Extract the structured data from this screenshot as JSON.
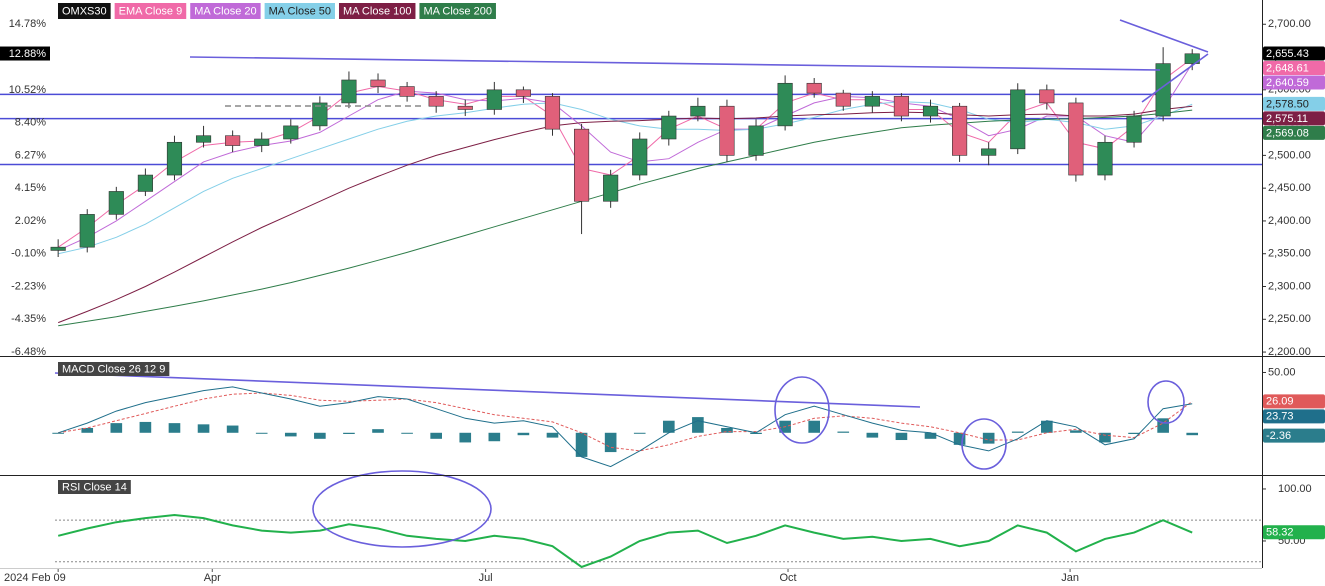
{
  "chart_data": [
    {
      "type": "candlestick",
      "name": "OMXS30",
      "open": [
        2355,
        2360,
        2410,
        2445,
        2470,
        2520,
        2530,
        2515,
        2525,
        2545,
        2580,
        2615,
        2605,
        2590,
        2575,
        2570,
        2600,
        2590,
        2540,
        2430,
        2470,
        2525,
        2560,
        2575,
        2500,
        2545,
        2610,
        2595,
        2575,
        2590,
        2560,
        2575,
        2500,
        2510,
        2600,
        2580,
        2470,
        2520,
        2560,
        2640
      ],
      "high": [
        2372,
        2418,
        2452,
        2480,
        2530,
        2545,
        2538,
        2535,
        2555,
        2590,
        2628,
        2625,
        2612,
        2598,
        2585,
        2612,
        2605,
        2595,
        2548,
        2478,
        2535,
        2568,
        2588,
        2585,
        2555,
        2622,
        2618,
        2600,
        2598,
        2595,
        2585,
        2580,
        2520,
        2610,
        2608,
        2588,
        2530,
        2568,
        2665,
        2662
      ],
      "low": [
        2345,
        2352,
        2402,
        2438,
        2462,
        2512,
        2505,
        2505,
        2518,
        2538,
        2572,
        2595,
        2582,
        2565,
        2560,
        2562,
        2580,
        2530,
        2380,
        2420,
        2462,
        2515,
        2552,
        2490,
        2492,
        2538,
        2588,
        2568,
        2565,
        2552,
        2550,
        2490,
        2485,
        2502,
        2570,
        2460,
        2462,
        2512,
        2552,
        2630
      ],
      "close": [
        2360,
        2410,
        2445,
        2470,
        2520,
        2530,
        2515,
        2525,
        2545,
        2580,
        2615,
        2605,
        2590,
        2575,
        2570,
        2600,
        2590,
        2540,
        2430,
        2470,
        2525,
        2560,
        2575,
        2500,
        2545,
        2610,
        2595,
        2575,
        2590,
        2560,
        2575,
        2500,
        2510,
        2600,
        2580,
        2470,
        2520,
        2560,
        2640,
        2655
      ],
      "up_color": "#2e8b57",
      "down_color": "#e0607a",
      "last": {
        "value": 2655.43,
        "label": "2,655.43",
        "color": "#000000"
      },
      "pct_last": {
        "value": 12.88,
        "label": "12.88%"
      },
      "series": [
        {
          "name": "EMA Close 9",
          "color": "#f06aa8",
          "values": [
            2360,
            2390,
            2425,
            2455,
            2490,
            2515,
            2520,
            2522,
            2535,
            2560,
            2595,
            2605,
            2598,
            2585,
            2578,
            2590,
            2590,
            2560,
            2480,
            2470,
            2500,
            2540,
            2560,
            2540,
            2540,
            2580,
            2595,
            2585,
            2585,
            2570,
            2570,
            2535,
            2520,
            2565,
            2580,
            2520,
            2510,
            2545,
            2615,
            2648
          ],
          "last": {
            "value": 2648.61,
            "label": "2,648.61"
          }
        },
        {
          "name": "MA Close 20",
          "color": "#c06ad8",
          "values": [
            2355,
            2375,
            2400,
            2430,
            2460,
            2490,
            2505,
            2515,
            2522,
            2535,
            2560,
            2585,
            2598,
            2595,
            2585,
            2583,
            2587,
            2580,
            2545,
            2505,
            2490,
            2495,
            2520,
            2540,
            2540,
            2560,
            2580,
            2590,
            2588,
            2580,
            2575,
            2555,
            2530,
            2540,
            2560,
            2560,
            2530,
            2520,
            2570,
            2640
          ],
          "last": {
            "value": 2640.59,
            "label": "2,640.59"
          }
        },
        {
          "name": "MA Close 50",
          "color": "#84cfe8",
          "values": [
            2350,
            2360,
            2375,
            2395,
            2420,
            2445,
            2465,
            2480,
            2495,
            2510,
            2525,
            2540,
            2552,
            2560,
            2565,
            2572,
            2578,
            2580,
            2570,
            2555,
            2545,
            2540,
            2540,
            2538,
            2540,
            2548,
            2558,
            2570,
            2578,
            2582,
            2580,
            2570,
            2555,
            2550,
            2555,
            2550,
            2540,
            2545,
            2560,
            2578
          ],
          "last": {
            "value": 2578.5,
            "label": "2,578.50"
          }
        },
        {
          "name": "MA Close 100",
          "color": "#7d1f45",
          "values": [
            2245,
            2262,
            2280,
            2300,
            2322,
            2345,
            2368,
            2390,
            2410,
            2430,
            2450,
            2468,
            2485,
            2500,
            2512,
            2524,
            2535,
            2545,
            2550,
            2552,
            2553,
            2555,
            2557,
            2556,
            2557,
            2560,
            2562,
            2563,
            2565,
            2566,
            2565,
            2562,
            2560,
            2562,
            2563,
            2560,
            2560,
            2563,
            2570,
            2575
          ],
          "last": {
            "value": 2575.11,
            "label": "2,575.11"
          }
        },
        {
          "name": "MA Close 200",
          "color": "#2f7d4a",
          "values": [
            2240,
            2247,
            2254,
            2262,
            2270,
            2278,
            2287,
            2296,
            2306,
            2317,
            2328,
            2340,
            2352,
            2365,
            2378,
            2391,
            2404,
            2417,
            2430,
            2443,
            2456,
            2468,
            2480,
            2490,
            2500,
            2510,
            2520,
            2528,
            2535,
            2542,
            2546,
            2549,
            2552,
            2554,
            2555,
            2556,
            2558,
            2560,
            2564,
            2569
          ],
          "last": {
            "value": 2569.08,
            "label": "2,569.08"
          }
        }
      ],
      "levels": [
        2593,
        2556,
        2486
      ],
      "level_color": "#4b4bd6",
      "xlim": [
        -2,
        41.4
      ],
      "xticks": [
        {
          "value": 0,
          "label": "2024 Feb 09"
        },
        {
          "value": 5.3,
          "label": "Apr"
        },
        {
          "value": 14.7,
          "label": "Jul"
        },
        {
          "value": 25.1,
          "label": "Oct"
        },
        {
          "value": 34.8,
          "label": "Jan"
        }
      ],
      "ylim": [
        2194,
        2737
      ],
      "yticks": [
        {
          "value": 2200,
          "label": "2,200.00"
        },
        {
          "value": 2250,
          "label": "2,250.00"
        },
        {
          "value": 2300,
          "label": "2,300.00"
        },
        {
          "value": 2350,
          "label": "2,350.00"
        },
        {
          "value": 2400,
          "label": "2,400.00"
        },
        {
          "value": 2450,
          "label": "2,450.00"
        },
        {
          "value": 2500,
          "label": "2,500.00"
        },
        {
          "value": 2550,
          "label": "2,550.00"
        },
        {
          "value": 2600,
          "label": "2,600.00"
        },
        {
          "value": 2650,
          "label": "2,650.00"
        },
        {
          "value": 2700,
          "label": "2,700.00"
        }
      ],
      "pct_lim": [
        -6.73,
        16.35
      ],
      "pct_ticks": [
        {
          "value": -6.48,
          "label": "-6.48%"
        },
        {
          "value": -4.35,
          "label": "-4.35%"
        },
        {
          "value": -2.23,
          "label": "-2.23%"
        },
        {
          "value": -0.1,
          "label": "-0.10%"
        },
        {
          "value": 2.02,
          "label": "2.02%"
        },
        {
          "value": 4.15,
          "label": "4.15%"
        },
        {
          "value": 6.27,
          "label": "6.27%"
        },
        {
          "value": 8.4,
          "label": "8.40%"
        },
        {
          "value": 10.52,
          "label": "10.52%"
        },
        {
          "value": 12.65,
          "label": "12.65%"
        },
        {
          "value": 14.78,
          "label": "14.78%"
        }
      ],
      "grid": false
    },
    {
      "type": "macd",
      "title": "MACD Close 26 12 9",
      "ylim": [
        -35,
        62
      ],
      "yticks": [
        {
          "value": 50,
          "label": "50.00"
        }
      ],
      "macd": {
        "color": "#1f6f8b",
        "values": [
          0,
          8,
          18,
          25,
          30,
          35,
          38,
          33,
          28,
          22,
          25,
          30,
          28,
          20,
          12,
          8,
          10,
          5,
          -20,
          -28,
          -15,
          0,
          10,
          5,
          0,
          15,
          22,
          15,
          8,
          2,
          0,
          -10,
          -15,
          -5,
          10,
          5,
          -10,
          -5,
          20,
          24
        ],
        "last": {
          "value": 23.73,
          "label": "23.73"
        }
      },
      "signal": {
        "color": "#e05a5a",
        "values": [
          0,
          4,
          10,
          16,
          22,
          28,
          32,
          33,
          31,
          27,
          26,
          27,
          28,
          25,
          20,
          15,
          12,
          9,
          0,
          -12,
          -15,
          -10,
          -3,
          1,
          1,
          5,
          12,
          14,
          12,
          8,
          5,
          0,
          -6,
          -6,
          0,
          3,
          -2,
          -4,
          8,
          26
        ],
        "last": {
          "value": 26.09,
          "label": "26.09"
        }
      },
      "histogram": {
        "color": "#2b7d8c",
        "values": [
          0,
          4,
          8,
          9,
          8,
          7,
          6,
          0,
          -3,
          -5,
          -1,
          3,
          0,
          -5,
          -8,
          -7,
          -2,
          -4,
          -20,
          -16,
          0,
          10,
          13,
          4,
          -1,
          10,
          10,
          1,
          -4,
          -6,
          -5,
          -10,
          -9,
          1,
          10,
          2,
          -8,
          -1,
          12,
          -2
        ],
        "last": {
          "value": -2.36,
          "label": "-2.36"
        }
      }
    },
    {
      "type": "line",
      "title": "RSI Close 14",
      "ylim": [
        24,
        111.5
      ],
      "yticks": [
        {
          "value": 100,
          "label": "100.00"
        },
        {
          "value": 50,
          "label": "50.00"
        }
      ],
      "bands": [
        70,
        30
      ],
      "color": "#22b14c",
      "values": [
        55,
        62,
        68,
        72,
        75,
        72,
        65,
        60,
        58,
        60,
        66,
        62,
        55,
        52,
        50,
        55,
        52,
        45,
        25,
        35,
        50,
        58,
        60,
        48,
        55,
        65,
        58,
        52,
        54,
        50,
        52,
        45,
        50,
        65,
        58,
        40,
        52,
        58,
        70,
        58
      ],
      "last": {
        "value": 58.32,
        "label": "58.32"
      }
    }
  ]
}
